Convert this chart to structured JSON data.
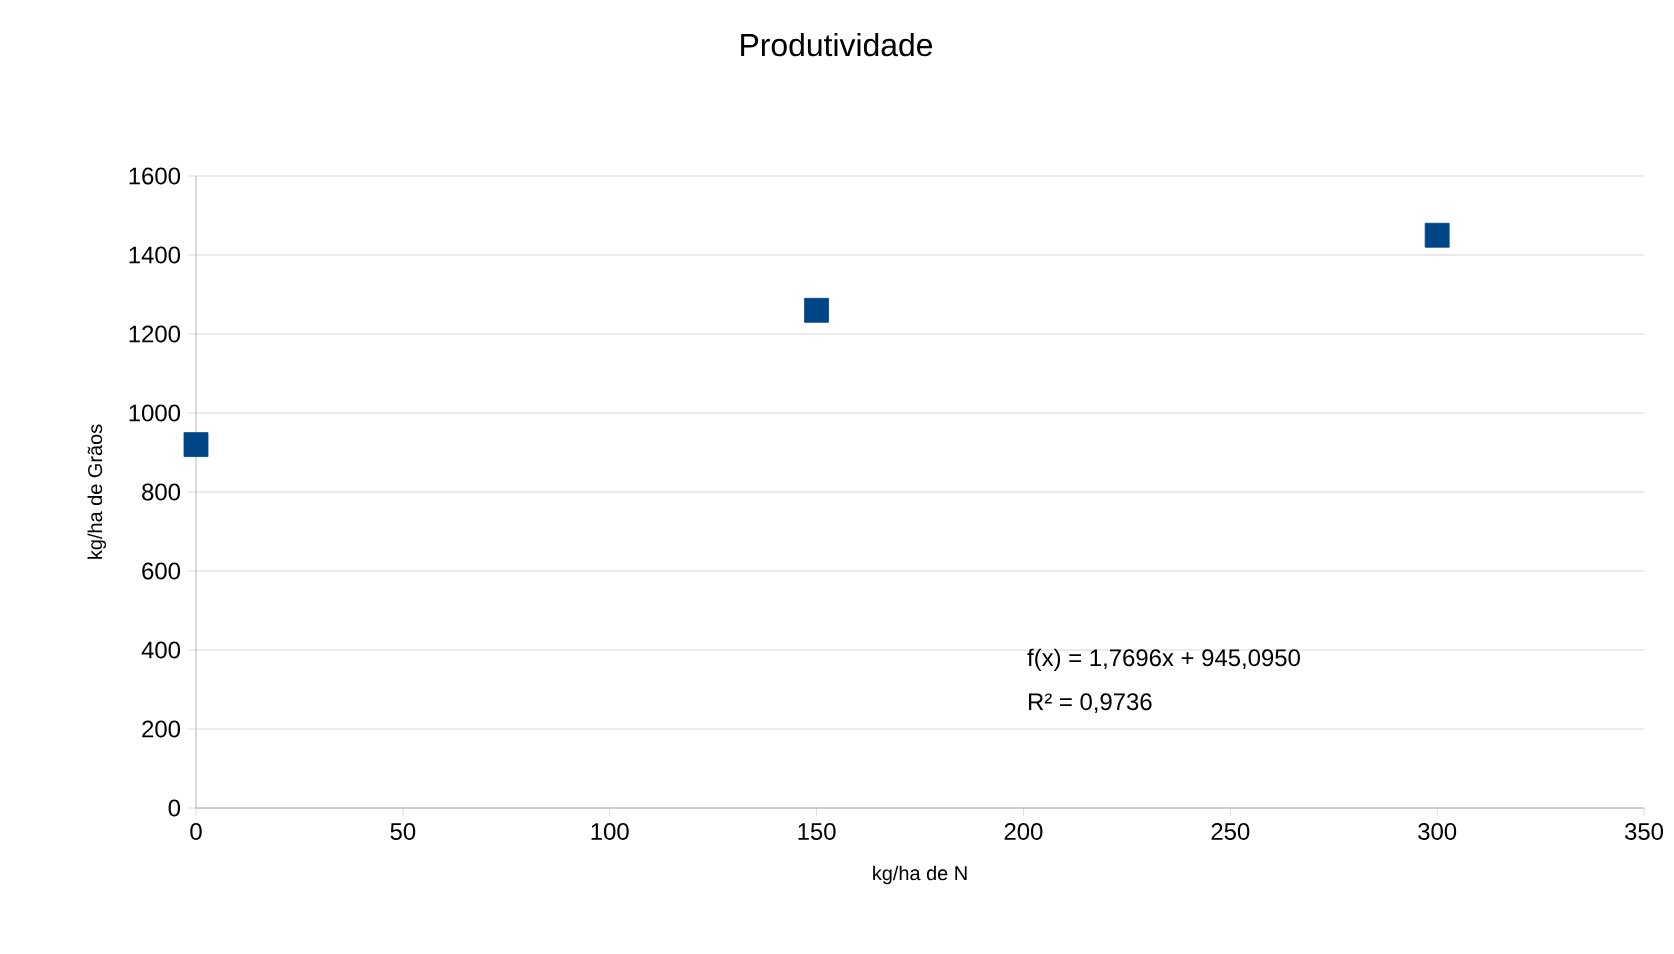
{
  "chart_data": {
    "type": "scatter",
    "title": "Produtividade",
    "xlabel": "kg/ha de N",
    "ylabel": "kg/ha de Grãos",
    "x": [
      0,
      150,
      300
    ],
    "series": [
      {
        "color": "#004586",
        "values": [
          920,
          1260,
          1450
        ]
      }
    ],
    "marker": "square",
    "xlim": [
      0,
      350
    ],
    "xticks": [
      0,
      50,
      100,
      150,
      200,
      250,
      300,
      350
    ],
    "ylim": [
      0,
      1600
    ],
    "yticks": [
      0,
      200,
      400,
      600,
      800,
      1000,
      1200,
      1400,
      1600
    ],
    "grid": "y",
    "annotations": [
      "f(x) = 1,7696x + 945,0950",
      "R² = 0,9736"
    ]
  }
}
